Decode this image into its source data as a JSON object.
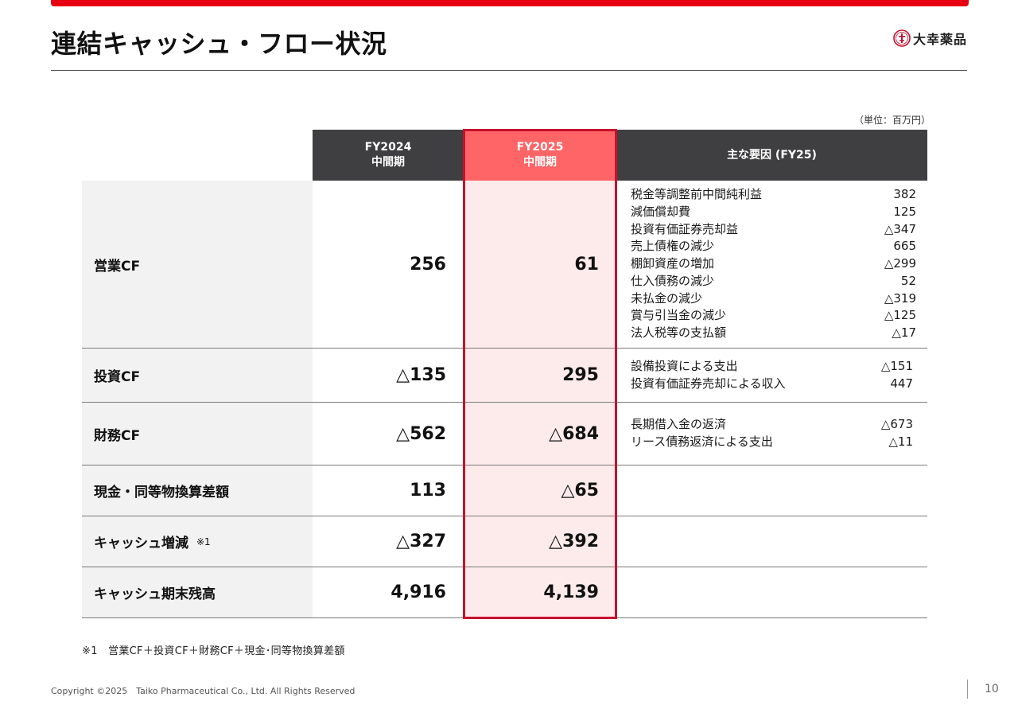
{
  "title": "連結キャッシュ・フロー状況",
  "logo": {
    "name": "大幸薬品",
    "icon": "company-seal-icon"
  },
  "unit": "（単位：百万円）",
  "header": {
    "fy2024_line1": "FY2024",
    "fy2024_line2": "中間期",
    "fy2025_line1": "FY2025",
    "fy2025_line2": "中間期",
    "factors": "主な要因 (FY25)"
  },
  "rows": [
    {
      "label": "営業CF",
      "fy2024": "256",
      "fy2025": "61",
      "factors": [
        {
          "name": "税金等調整前中間純利益",
          "value": "382"
        },
        {
          "name": "減価償却費",
          "value": "125"
        },
        {
          "name": "投資有価証券売却益",
          "value": "△347"
        },
        {
          "name": "売上債権の減少",
          "value": "665"
        },
        {
          "name": "棚卸資産の増加",
          "value": "△299"
        },
        {
          "name": "仕入債務の減少",
          "value": "52"
        },
        {
          "name": "未払金の減少",
          "value": "△319"
        },
        {
          "name": "賞与引当金の減少",
          "value": "△125"
        },
        {
          "name": "法人税等の支払額",
          "value": "△17"
        }
      ]
    },
    {
      "label": "投資CF",
      "fy2024": "△135",
      "fy2025": "295",
      "factors": [
        {
          "name": "設備投資による支出",
          "value": "△151"
        },
        {
          "name": "投資有価証券売却による収入",
          "value": "447"
        }
      ]
    },
    {
      "label": "財務CF",
      "fy2024": "△562",
      "fy2025": "△684",
      "factors": [
        {
          "name": "長期借入金の返済",
          "value": "△673"
        },
        {
          "name": "リース債務返済による支出",
          "value": "△11"
        }
      ]
    },
    {
      "label": "現金・同等物換算差額",
      "fy2024": "113",
      "fy2025": "△65"
    },
    {
      "label": "キャッシュ増減",
      "note": "※1",
      "fy2024": "△327",
      "fy2025": "△392"
    },
    {
      "label": "キャッシュ期末残高",
      "fy2024": "4,916",
      "fy2025": "4,139"
    }
  ],
  "footnote": "※1　営業CF＋投資CF＋財務CF＋現金･同等物換算差額",
  "copyright": "Copyright ©2025　Taiko Pharmaceutical Co., Ltd. All Rights Reserved",
  "page_number": "10",
  "colors": {
    "brand_red": "#e60012",
    "header_dark": "#3f3f41",
    "highlight_header": "#ff6466",
    "highlight_fill": "#fdebeb",
    "highlight_border": "#c8102e"
  }
}
